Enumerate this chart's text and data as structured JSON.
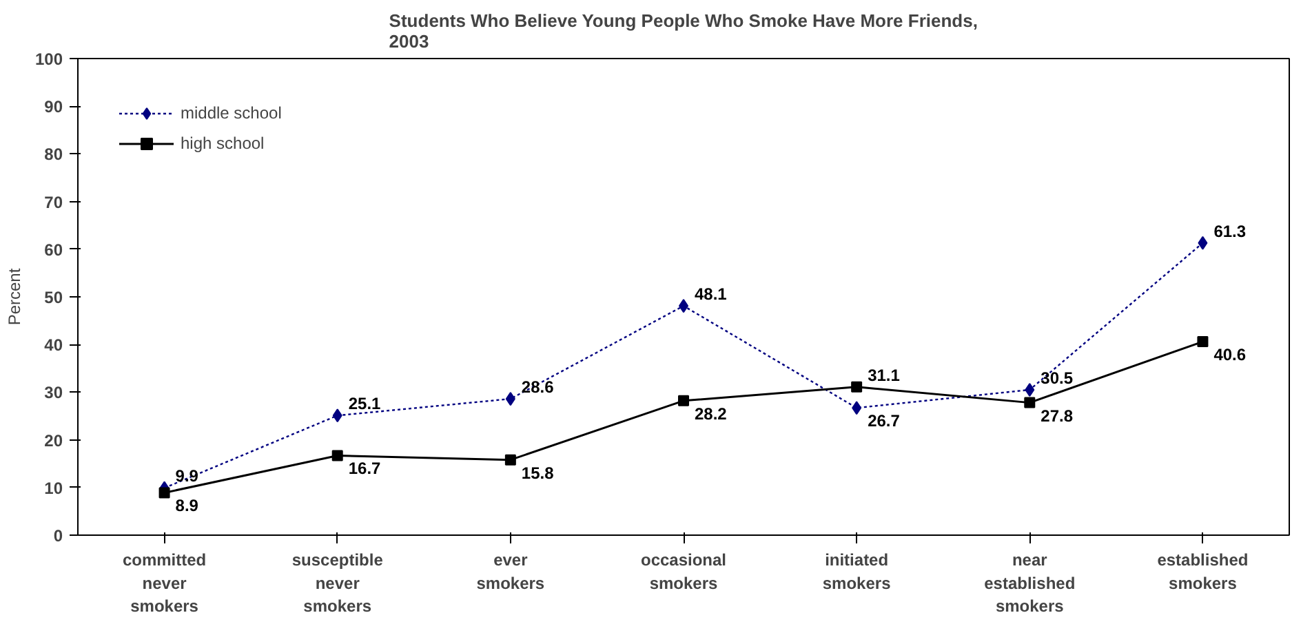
{
  "chart_data": {
    "type": "line",
    "title": "Students Who Believe Young People Who Smoke Have More Friends,\n2003",
    "ylabel": "Percent",
    "categories": [
      "committed never smokers",
      "susceptible never smokers",
      "ever smokers",
      "occasional smokers",
      "initiated smokers",
      "near established smokers",
      "established smokers"
    ],
    "series": [
      {
        "name": "middle school",
        "color": "#000080",
        "marker": "diamond",
        "line_style": "dotted",
        "values": [
          9.9,
          25.1,
          28.6,
          48.1,
          26.7,
          30.5,
          61.3
        ]
      },
      {
        "name": "high school",
        "color": "#000000",
        "marker": "square",
        "line_style": "solid",
        "values": [
          8.9,
          16.7,
          15.8,
          28.2,
          31.1,
          27.8,
          40.6
        ]
      }
    ],
    "ylim": [
      0,
      100
    ],
    "yticks": [
      0,
      10,
      20,
      30,
      40,
      50,
      60,
      70,
      80,
      90,
      100
    ],
    "grid": false,
    "legend": "top left",
    "data_labels": true
  }
}
